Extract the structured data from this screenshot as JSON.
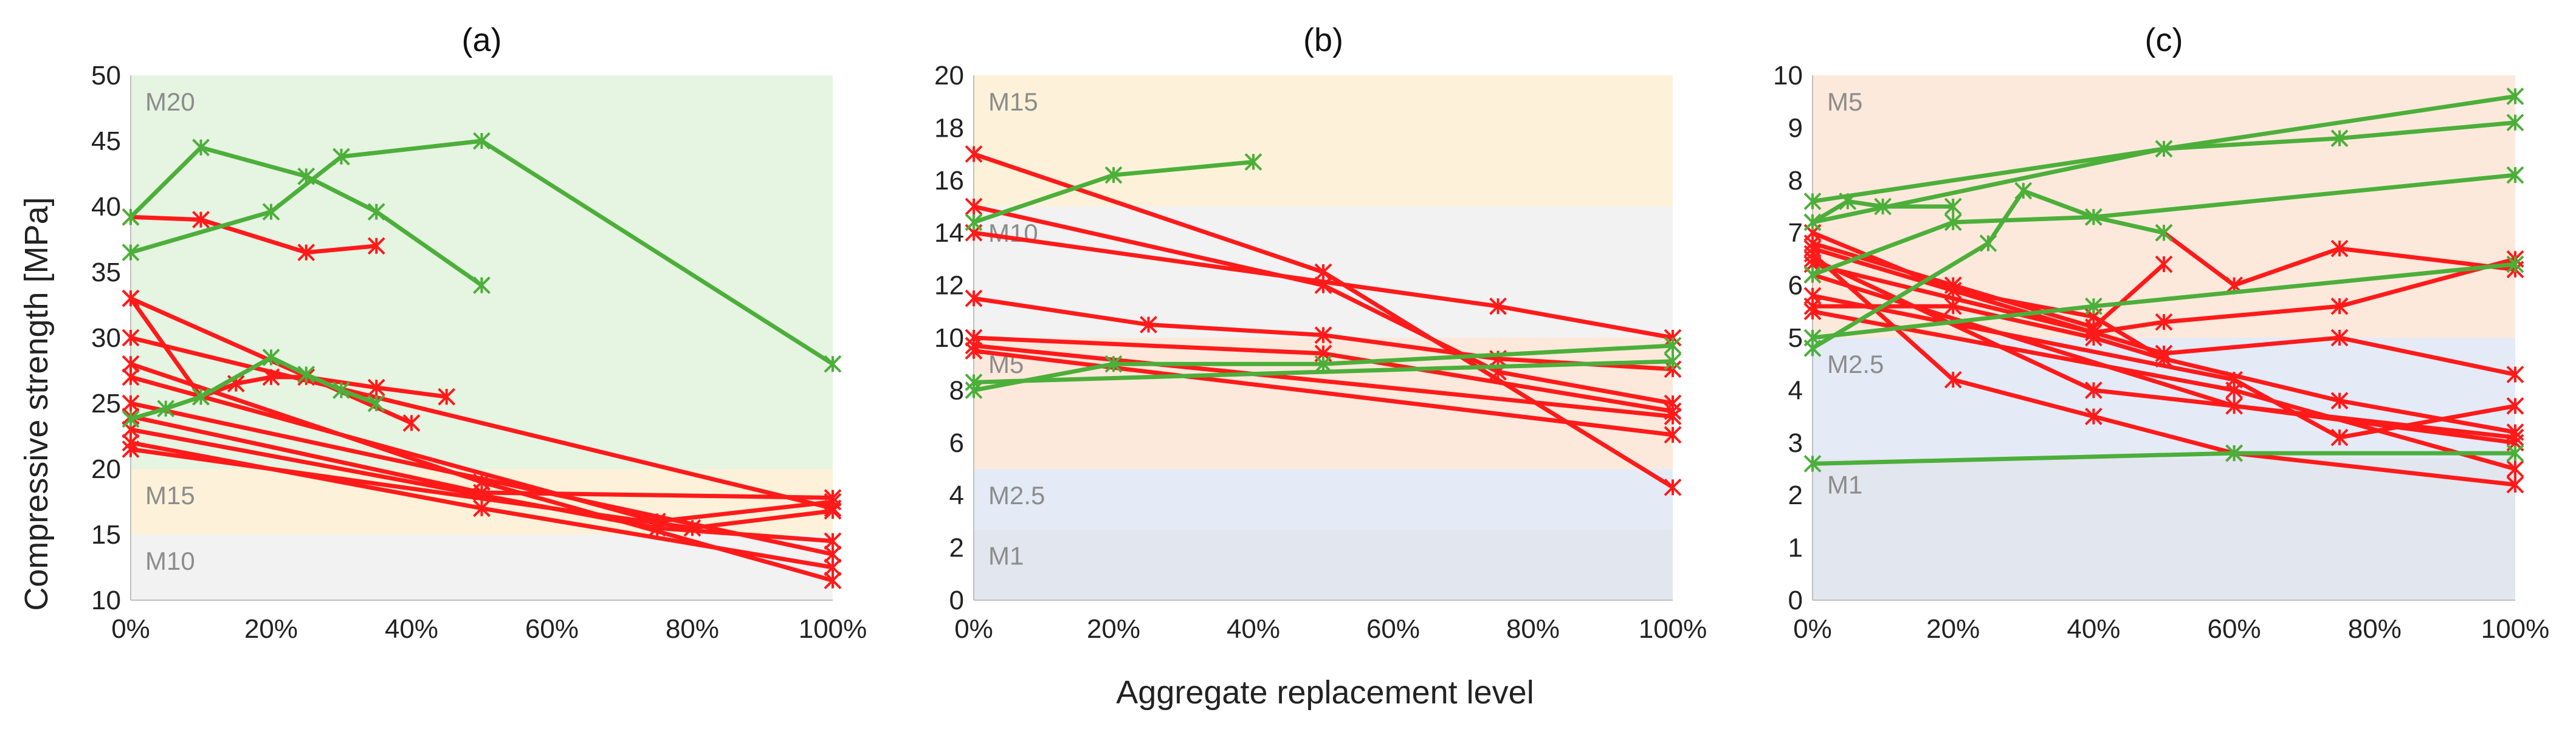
{
  "figure": {
    "ylabel": "Compressive strength [MPa]",
    "xlabel": "Aggregate replacement level",
    "colors": {
      "green": "#4caf3a",
      "red": "#ff1a1a",
      "axis": "#bfbfbf"
    }
  },
  "chart_data": [
    {
      "type": "line",
      "title": "(a)",
      "ylim": [
        10,
        50
      ],
      "yticks": [
        "10",
        "15",
        "20",
        "25",
        "30",
        "35",
        "40",
        "45",
        "50"
      ],
      "xlim": [
        0,
        100
      ],
      "xticks": [
        "0%",
        "20%",
        "40%",
        "60%",
        "80%",
        "100%"
      ],
      "zones": [
        {
          "label": "M10",
          "from": 10,
          "to": 15,
          "color": "#f2f2f2"
        },
        {
          "label": "M15",
          "from": 15,
          "to": 20,
          "color": "#fdf2d9"
        },
        {
          "label": "M20",
          "from": 20,
          "to": 50,
          "color": "#e6f4e2"
        }
      ],
      "series": [
        {
          "color": "green",
          "points": [
            [
              0,
              39.2
            ],
            [
              10,
              44.5
            ],
            [
              25,
              42.3
            ],
            [
              35,
              39.6
            ],
            [
              50,
              34
            ]
          ]
        },
        {
          "color": "green",
          "points": [
            [
              0,
              36.5
            ],
            [
              20,
              39.6
            ],
            [
              30,
              43.8
            ],
            [
              50,
              45
            ],
            [
              100,
              28
            ]
          ]
        },
        {
          "color": "green",
          "points": [
            [
              0,
              23.8
            ],
            [
              5,
              24.6
            ],
            [
              10,
              25.5
            ],
            [
              20,
              28.5
            ],
            [
              25,
              27.2
            ],
            [
              30,
              26
            ],
            [
              35,
              25
            ]
          ]
        },
        {
          "color": "red",
          "points": [
            [
              0,
              39.2
            ],
            [
              10,
              39
            ],
            [
              25,
              36.5
            ],
            [
              35,
              37
            ]
          ]
        },
        {
          "color": "red",
          "points": [
            [
              0,
              33
            ],
            [
              10,
              25.5
            ],
            [
              15,
              26.5
            ],
            [
              20,
              27
            ],
            [
              25,
              27
            ],
            [
              35,
              26.2
            ],
            [
              45,
              25.5
            ]
          ]
        },
        {
          "color": "red",
          "points": [
            [
              0,
              33
            ],
            [
              40,
              23.5
            ]
          ]
        },
        {
          "color": "red",
          "points": [
            [
              0,
              30
            ],
            [
              100,
              17
            ]
          ]
        },
        {
          "color": "red",
          "points": [
            [
              0,
              28
            ],
            [
              50,
              19
            ],
            [
              100,
              11.5
            ]
          ]
        },
        {
          "color": "red",
          "points": [
            [
              0,
              27
            ],
            [
              75,
              16
            ],
            [
              100,
              17.5
            ]
          ]
        },
        {
          "color": "red",
          "points": [
            [
              0,
              25
            ],
            [
              100,
              13.5
            ]
          ]
        },
        {
          "color": "red",
          "points": [
            [
              0,
              24
            ],
            [
              50,
              18.2
            ],
            [
              100,
              17.8
            ]
          ]
        },
        {
          "color": "red",
          "points": [
            [
              0,
              23
            ],
            [
              75,
              15.5
            ],
            [
              100,
              14.5
            ]
          ]
        },
        {
          "color": "red",
          "points": [
            [
              0,
              22
            ],
            [
              50,
              17
            ],
            [
              100,
              12.5
            ]
          ]
        },
        {
          "color": "red",
          "points": [
            [
              0,
              21.5
            ],
            [
              80,
              15.5
            ],
            [
              100,
              16.8
            ]
          ]
        }
      ]
    },
    {
      "type": "line",
      "title": "(b)",
      "ylim": [
        0,
        20
      ],
      "yticks": [
        "0",
        "2",
        "4",
        "6",
        "8",
        "10",
        "12",
        "14",
        "16",
        "18",
        "20"
      ],
      "xlim": [
        0,
        100
      ],
      "xticks": [
        "0%",
        "20%",
        "40%",
        "60%",
        "80%",
        "100%"
      ],
      "zones": [
        {
          "label": "M1",
          "from": 0,
          "to": 2.7,
          "color": "#e2e6ee"
        },
        {
          "label": "M2.5",
          "from": 2.7,
          "to": 5,
          "color": "#e4ebf7"
        },
        {
          "label": "M5",
          "from": 5,
          "to": 10,
          "color": "#fde9dc"
        },
        {
          "label": "M10",
          "from": 10,
          "to": 15,
          "color": "#f2f2f2"
        },
        {
          "label": "M15",
          "from": 15,
          "to": 20,
          "color": "#fdf2d9"
        }
      ],
      "series": [
        {
          "color": "green",
          "points": [
            [
              0,
              14.4
            ],
            [
              20,
              16.2
            ],
            [
              40,
              16.7
            ]
          ]
        },
        {
          "color": "green",
          "points": [
            [
              0,
              8
            ],
            [
              20,
              9
            ],
            [
              50,
              9
            ],
            [
              100,
              9.7
            ]
          ]
        },
        {
          "color": "green",
          "points": [
            [
              0,
              8.3
            ],
            [
              100,
              9.1
            ]
          ]
        },
        {
          "color": "red",
          "points": [
            [
              0,
              17
            ],
            [
              50,
              12.5
            ],
            [
              100,
              4.3
            ]
          ]
        },
        {
          "color": "red",
          "points": [
            [
              0,
              15
            ],
            [
              50,
              12
            ],
            [
              75,
              8.7
            ],
            [
              100,
              7.5
            ]
          ]
        },
        {
          "color": "red",
          "points": [
            [
              0,
              14
            ],
            [
              75,
              11.2
            ],
            [
              100,
              10
            ]
          ]
        },
        {
          "color": "red",
          "points": [
            [
              0,
              11.5
            ],
            [
              25,
              10.5
            ],
            [
              50,
              10.1
            ],
            [
              75,
              9.2
            ],
            [
              100,
              8.8
            ]
          ]
        },
        {
          "color": "red",
          "points": [
            [
              0,
              10
            ],
            [
              50,
              9.4
            ],
            [
              100,
              7.2
            ]
          ]
        },
        {
          "color": "red",
          "points": [
            [
              0,
              9.7
            ],
            [
              100,
              7
            ]
          ]
        },
        {
          "color": "red",
          "points": [
            [
              0,
              9.5
            ],
            [
              100,
              6.3
            ]
          ]
        }
      ]
    },
    {
      "type": "line",
      "title": "(c)",
      "ylim": [
        0,
        10
      ],
      "yticks": [
        "0",
        "1",
        "2",
        "3",
        "4",
        "5",
        "6",
        "7",
        "8",
        "9",
        "10"
      ],
      "xlim": [
        0,
        100
      ],
      "xticks": [
        "0%",
        "20%",
        "40%",
        "60%",
        "80%",
        "100%"
      ],
      "zones": [
        {
          "label": "M1",
          "from": 0,
          "to": 2.7,
          "color": "#e2e6ee"
        },
        {
          "label": "M2.5",
          "from": 2.7,
          "to": 5,
          "color": "#e4ebf7"
        },
        {
          "label": "M5",
          "from": 5,
          "to": 10,
          "color": "#fde9dc"
        }
      ],
      "series": [
        {
          "color": "green",
          "points": [
            [
              0,
              7.6
            ],
            [
              50,
              8.6
            ],
            [
              100,
              9.6
            ]
          ]
        },
        {
          "color": "green",
          "points": [
            [
              0,
              7.2
            ],
            [
              50,
              8.6
            ],
            [
              75,
              8.8
            ],
            [
              100,
              9.1
            ]
          ]
        },
        {
          "color": "green",
          "points": [
            [
              0,
              6.2
            ],
            [
              20,
              7.2
            ],
            [
              40,
              7.3
            ],
            [
              100,
              8.1
            ]
          ]
        },
        {
          "color": "green",
          "points": [
            [
              0,
              5
            ],
            [
              40,
              5.6
            ],
            [
              100,
              6.4
            ]
          ]
        },
        {
          "color": "green",
          "points": [
            [
              0,
              4.8
            ],
            [
              25,
              6.8
            ],
            [
              30,
              7.8
            ],
            [
              40,
              7.3
            ],
            [
              50,
              7
            ]
          ]
        },
        {
          "color": "green",
          "points": [
            [
              0,
              7.2
            ],
            [
              5,
              7.6
            ],
            [
              10,
              7.5
            ],
            [
              20,
              7.5
            ]
          ]
        },
        {
          "color": "green",
          "points": [
            [
              0,
              2.6
            ],
            [
              60,
              2.8
            ],
            [
              100,
              2.8
            ]
          ]
        },
        {
          "color": "red",
          "points": [
            [
              0,
              7
            ],
            [
              20,
              5.9
            ],
            [
              40,
              5.4
            ],
            [
              50,
              4.6
            ]
          ]
        },
        {
          "color": "red",
          "points": [
            [
              0,
              6.8
            ],
            [
              20,
              6
            ],
            [
              40,
              5.2
            ],
            [
              50,
              6.4
            ]
          ]
        },
        {
          "color": "red",
          "points": [
            [
              0,
              6.6
            ],
            [
              20,
              4.2
            ],
            [
              40,
              3.5
            ],
            [
              60,
              2.8
            ],
            [
              100,
              2.2
            ]
          ]
        },
        {
          "color": "red",
          "points": [
            [
              0,
              6.5
            ],
            [
              40,
              4
            ],
            [
              100,
              3.1
            ]
          ]
        },
        {
          "color": "red",
          "points": [
            [
              0,
              5.6
            ],
            [
              20,
              5.6
            ],
            [
              40,
              5
            ],
            [
              50,
              4.6
            ],
            [
              75,
              3.8
            ],
            [
              100,
              3.2
            ]
          ]
        },
        {
          "color": "red",
          "points": [
            [
              0,
              5.5
            ],
            [
              60,
              4
            ],
            [
              100,
              2.5
            ]
          ]
        },
        {
          "color": "red",
          "points": [
            [
              0,
              6.2
            ],
            [
              60,
              3.7
            ],
            [
              100,
              3
            ]
          ]
        },
        {
          "color": "red",
          "points": [
            [
              0,
              6.7
            ],
            [
              50,
              4.7
            ],
            [
              75,
              5
            ],
            [
              100,
              4.3
            ]
          ]
        },
        {
          "color": "red",
          "points": [
            [
              50,
              7
            ],
            [
              60,
              6
            ],
            [
              75,
              6.7
            ],
            [
              100,
              6.3
            ]
          ]
        },
        {
          "color": "red",
          "points": [
            [
              0,
              6.4
            ],
            [
              40,
              5.1
            ],
            [
              50,
              5.3
            ],
            [
              75,
              5.6
            ],
            [
              100,
              6.5
            ]
          ]
        },
        {
          "color": "red",
          "points": [
            [
              0,
              5.8
            ],
            [
              60,
              4.2
            ],
            [
              75,
              3.1
            ],
            [
              100,
              3.7
            ]
          ]
        }
      ]
    }
  ]
}
